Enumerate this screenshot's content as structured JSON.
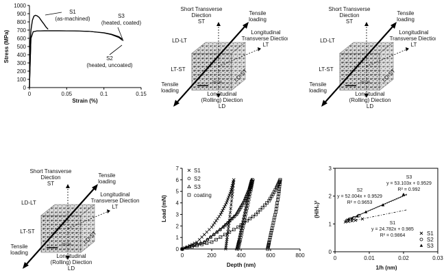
{
  "chart_data": [
    {
      "type": "line",
      "xlabel": "Strain (%)",
      "ylabel": "Stress (MPa)",
      "xlim": [
        0,
        0.15
      ],
      "ylim": [
        0,
        1000
      ],
      "xticks": [
        "0",
        "0.05",
        "0.1",
        "0.15"
      ],
      "yticks": [
        "0",
        "100",
        "200",
        "300",
        "400",
        "500",
        "600",
        "700",
        "800",
        "900",
        "1000"
      ],
      "grid": false,
      "series": [
        {
          "name": "S1 (as-machined)",
          "x": [
            0,
            0.001,
            0.002,
            0.004,
            0.006,
            0.008,
            0.01,
            0.013,
            0.016,
            0.019,
            0.022,
            0.025
          ],
          "y": [
            0,
            550,
            700,
            820,
            870,
            880,
            875,
            855,
            815,
            780,
            740,
            710
          ]
        },
        {
          "name": "S2 (heated, uncoated)",
          "x": [
            0,
            0.002,
            0.005,
            0.01,
            0.02,
            0.04,
            0.06,
            0.08,
            0.1,
            0.11,
            0.12,
            0.125
          ],
          "y": [
            0,
            600,
            680,
            690,
            692,
            692,
            690,
            685,
            665,
            645,
            610,
            575
          ]
        },
        {
          "name": "S3 (heated, coated)",
          "x": [
            0,
            0.002,
            0.005,
            0.01,
            0.02,
            0.04,
            0.06,
            0.08,
            0.1,
            0.11,
            0.12,
            0.125
          ],
          "y": [
            0,
            600,
            680,
            690,
            692,
            692,
            690,
            685,
            668,
            650,
            620,
            590
          ]
        }
      ],
      "annotations": [
        "S1",
        "(as-machined)",
        "S3",
        "(heated, coated)",
        "S2",
        "(heated, uncoated)"
      ]
    },
    {
      "type": "line",
      "xlabel": "Depth (nm)",
      "ylabel": "Load (mN)",
      "xlim": [
        0,
        800
      ],
      "ylim": [
        0,
        7
      ],
      "xticks": [
        "0",
        "200",
        "400",
        "600",
        "800"
      ],
      "yticks": [
        "0",
        "1",
        "2",
        "3",
        "4",
        "5",
        "6",
        "7"
      ],
      "legend_placement": "top-left",
      "series": [
        {
          "name": "S1",
          "marker": "x",
          "loading": {
            "x": [
              0,
              100,
              200,
              260,
              300,
              330,
              350
            ],
            "y": [
              0,
              0.6,
              1.9,
              3.0,
              4.0,
              5.0,
              6.0
            ]
          },
          "unloading": {
            "x": [
              350,
              338,
              320,
              305,
              295
            ],
            "y": [
              6.0,
              4.5,
              2.5,
              1.0,
              0
            ]
          }
        },
        {
          "name": "S2",
          "marker": "circle",
          "loading": {
            "x": [
              0,
              150,
              280,
              370,
              430,
              465,
              480
            ],
            "y": [
              0,
              0.6,
              1.9,
              3.0,
              4.2,
              5.3,
              6.0
            ]
          },
          "unloading": {
            "x": [
              480,
              465,
              440,
              415,
              395,
              380
            ],
            "y": [
              6.0,
              5.0,
              3.5,
              2.0,
              0.8,
              0
            ]
          }
        },
        {
          "name": "S3",
          "marker": "triangle",
          "loading": {
            "x": [
              0,
              150,
              275,
              365,
              420,
              455,
              470
            ],
            "y": [
              0,
              0.6,
              1.9,
              3.0,
              4.2,
              5.3,
              6.0
            ]
          },
          "unloading": {
            "x": [
              470,
              455,
              430,
              405,
              385,
              370
            ],
            "y": [
              6.0,
              5.0,
              3.5,
              2.0,
              0.8,
              0
            ]
          }
        },
        {
          "name": "coating",
          "marker": "square",
          "loading": {
            "x": [
              0,
              200,
              380,
              500,
              590,
              640,
              665
            ],
            "y": [
              0,
              0.6,
              1.9,
              3.0,
              4.2,
              5.3,
              6.0
            ]
          },
          "unloading": {
            "x": [
              665,
              655,
              635,
              610,
              590,
              580
            ],
            "y": [
              6.0,
              4.8,
              3.2,
              1.8,
              0.6,
              0
            ]
          }
        }
      ]
    },
    {
      "type": "scatter",
      "xlabel": "1/h (nm)",
      "ylabel": "(H/H₀)²",
      "xlim": [
        0,
        0.03
      ],
      "ylim": [
        0,
        3
      ],
      "xticks": [
        "0",
        "0.01",
        "0.02",
        "0.03"
      ],
      "yticks": [
        "0",
        "1",
        "2",
        "3"
      ],
      "legend_placement": "bottom-right",
      "series": [
        {
          "name": "S1",
          "marker": "x",
          "x": [
            0.003,
            0.004,
            0.005,
            0.006,
            0.008
          ],
          "y": [
            1.07,
            1.09,
            1.11,
            1.13,
            1.18
          ],
          "fit": {
            "slope": 24.782,
            "intercept": 0.985,
            "equation": "y = 24.782x + 0.985",
            "r2": "R² = 0.9864"
          }
        },
        {
          "name": "S2",
          "marker": "circle",
          "x": [
            0.0035,
            0.0045,
            0.0055,
            0.007
          ],
          "y": [
            1.13,
            1.18,
            1.22,
            1.3
          ],
          "fit": {
            "slope": 52.004,
            "intercept": 0.9529,
            "equation": "y = 52.004x + 0.9529",
            "r2": "R² = 0.9653"
          }
        },
        {
          "name": "S3",
          "marker": "triangle",
          "x": [
            0.004,
            0.005,
            0.0065,
            0.009,
            0.014,
            0.02
          ],
          "y": [
            1.17,
            1.2,
            1.28,
            1.43,
            1.68,
            2.06
          ],
          "fit": {
            "slope": 53.103,
            "intercept": 0.9529,
            "equation": "y = 53.103x + 0.9529",
            "r2": "R² = 0.992"
          }
        }
      ],
      "annotations": [
        "S3",
        "S2",
        "S1"
      ]
    }
  ],
  "diagrams": {
    "labels": {
      "st": "Short Transverse",
      "st2": "Diection",
      "st3": "ST",
      "tl": "Tensile",
      "tl2": "loading",
      "lt": "Longitudinal",
      "lt2": "Transverse Diection",
      "lt3": "LT",
      "ldlt": "LD-LT",
      "ltst": "LT-ST",
      "ldst": "LD-ST",
      "scale": "20 µm",
      "ld": "Longitudinal",
      "ld2": "(Rolling) Diection",
      "ld3": "LD",
      "bl": "Tensile",
      "bl2": "loading"
    }
  }
}
